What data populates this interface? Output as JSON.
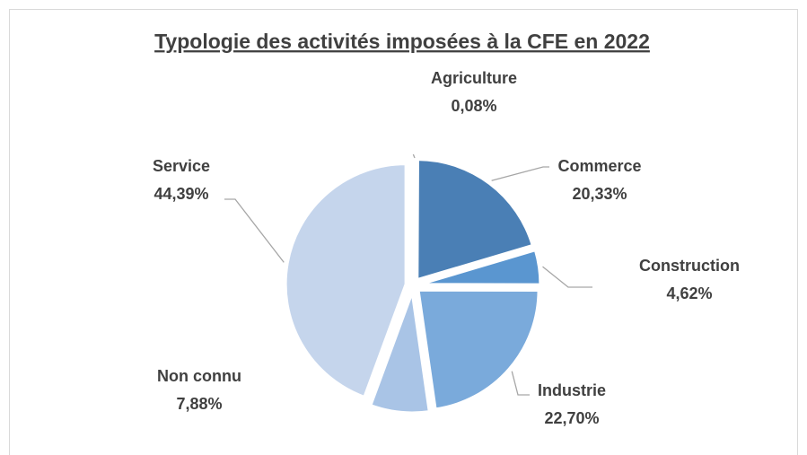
{
  "chart_data": {
    "type": "pie",
    "title": "Typologie des activités imposées à la CFE en 2022",
    "categories": [
      "Agriculture",
      "Commerce",
      "Construction",
      "Industrie",
      "Non connu",
      "Service"
    ],
    "values": [
      0.08,
      20.33,
      4.62,
      22.7,
      7.88,
      44.39
    ],
    "value_labels": [
      "0,08%",
      "20,33%",
      "4,62%",
      "22,70%",
      "7,88%",
      "44,39%"
    ],
    "colors": [
      "#2f5f94",
      "#4a7fb5",
      "#5a96d0",
      "#7aaadb",
      "#a9c4e6",
      "#c5d5ec"
    ]
  }
}
